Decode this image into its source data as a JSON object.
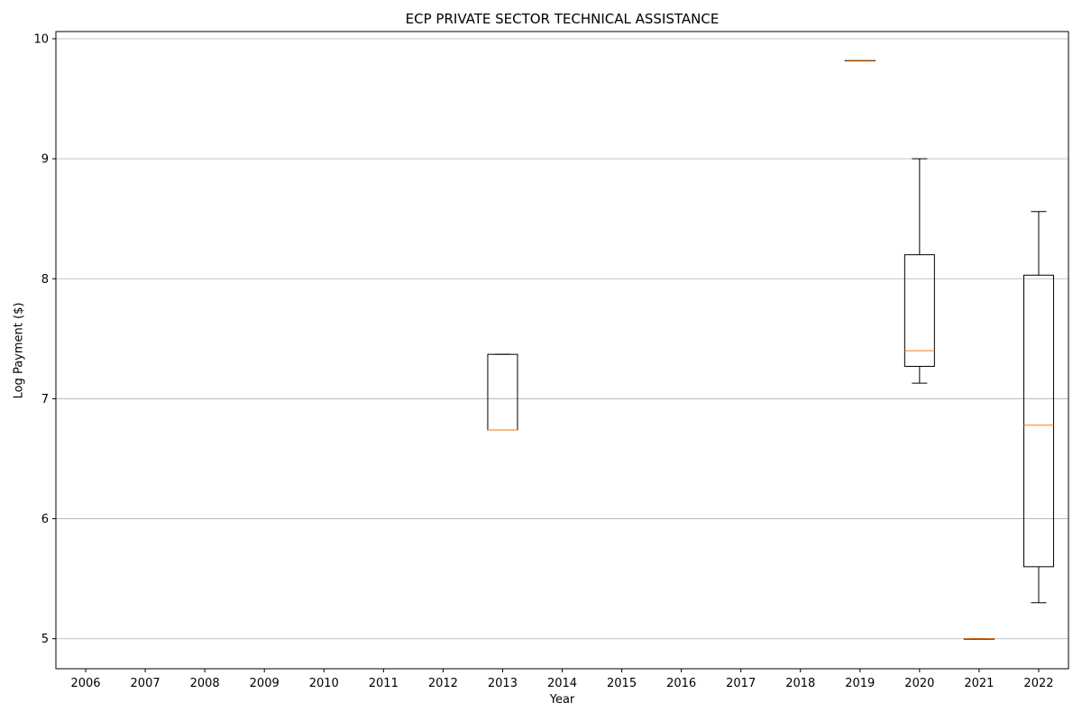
{
  "chart_data": {
    "type": "box",
    "title": "ECP PRIVATE SECTOR TECHNICAL ASSISTANCE",
    "xlabel": "Year",
    "ylabel": "Log Payment ($)",
    "ylim": [
      4.75,
      10.06
    ],
    "grid": "y",
    "categories": [
      "2006",
      "2007",
      "2008",
      "2009",
      "2010",
      "2011",
      "2012",
      "2013",
      "2014",
      "2015",
      "2016",
      "2017",
      "2018",
      "2019",
      "2020",
      "2021",
      "2022"
    ],
    "yticks": [
      5,
      6,
      7,
      8,
      9,
      10
    ],
    "boxes": [
      {
        "category": "2013",
        "whisker_low": 6.74,
        "q1": 6.74,
        "median": 6.74,
        "q3": 7.37,
        "whisker_high": 7.37
      },
      {
        "category": "2019",
        "whisker_low": 9.82,
        "q1": 9.82,
        "median": 9.82,
        "q3": 9.82,
        "whisker_high": 9.82
      },
      {
        "category": "2020",
        "whisker_low": 7.13,
        "q1": 7.27,
        "median": 7.4,
        "q3": 8.2,
        "whisker_high": 9.0
      },
      {
        "category": "2021",
        "whisker_low": 5.0,
        "q1": 5.0,
        "median": 5.0,
        "q3": 5.0,
        "whisker_high": 5.0
      },
      {
        "category": "2022",
        "whisker_low": 5.3,
        "q1": 5.6,
        "median": 6.78,
        "q3": 8.03,
        "whisker_high": 8.56
      }
    ]
  },
  "colors": {
    "box": "#000000",
    "median": "#ff7f0e",
    "grid": "#b0b0b0"
  }
}
